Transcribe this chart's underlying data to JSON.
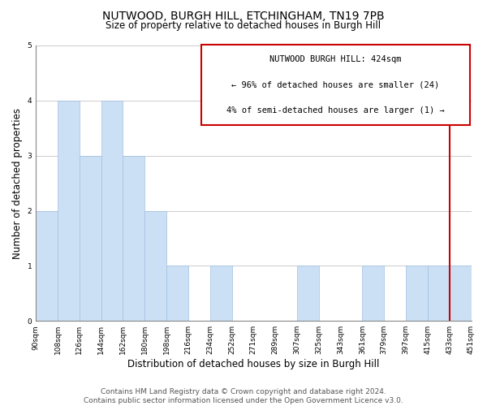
{
  "title": "NUTWOOD, BURGH HILL, ETCHINGHAM, TN19 7PB",
  "subtitle": "Size of property relative to detached houses in Burgh Hill",
  "xlabel": "Distribution of detached houses by size in Burgh Hill",
  "ylabel": "Number of detached properties",
  "bar_color": "#cce0f5",
  "bar_edge_color": "#a0c0e0",
  "grid_color": "#cccccc",
  "background_color": "#ffffff",
  "tick_labels": [
    "90sqm",
    "108sqm",
    "126sqm",
    "144sqm",
    "162sqm",
    "180sqm",
    "198sqm",
    "216sqm",
    "234sqm",
    "252sqm",
    "271sqm",
    "289sqm",
    "307sqm",
    "325sqm",
    "343sqm",
    "361sqm",
    "379sqm",
    "397sqm",
    "415sqm",
    "433sqm",
    "451sqm"
  ],
  "bar_heights": [
    2,
    4,
    3,
    4,
    3,
    2,
    1,
    0,
    1,
    0,
    0,
    0,
    1,
    0,
    0,
    1,
    0,
    1,
    1,
    1
  ],
  "ylim": [
    0,
    5
  ],
  "yticks": [
    0,
    1,
    2,
    3,
    4,
    5
  ],
  "vline_color": "#cc0000",
  "annotation_text_line1": "NUTWOOD BURGH HILL: 424sqm",
  "annotation_text_line2": "← 96% of detached houses are smaller (24)",
  "annotation_text_line3": "4% of semi-detached houses are larger (1) →",
  "footer_line1": "Contains HM Land Registry data © Crown copyright and database right 2024.",
  "footer_line2": "Contains public sector information licensed under the Open Government Licence v3.0.",
  "title_fontsize": 10,
  "subtitle_fontsize": 8.5,
  "axis_label_fontsize": 8.5,
  "tick_fontsize": 6.5,
  "annotation_fontsize": 7.5,
  "footer_fontsize": 6.5
}
